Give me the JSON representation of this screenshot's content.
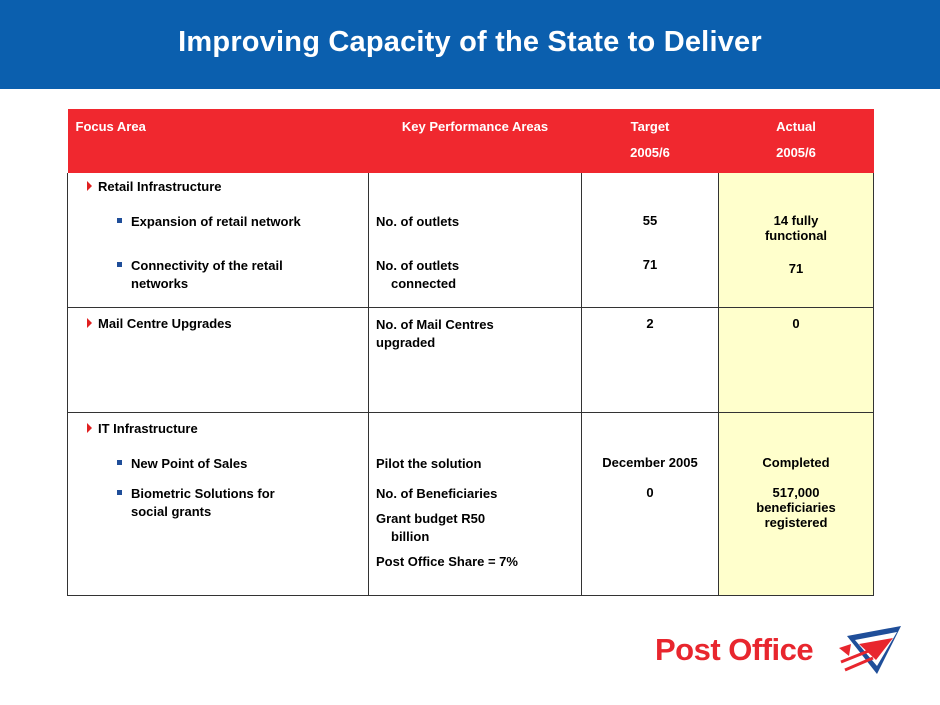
{
  "title": "Improving Capacity of the State to Deliver",
  "table": {
    "headers": {
      "focus_area": "Focus Area",
      "kpa": "Key Performance Areas",
      "target": "Target",
      "target_year": "2005/6",
      "actual": "Actual",
      "actual_year": "2005/6"
    },
    "sections": {
      "retail": {
        "title": "Retail Infrastructure",
        "rows": [
          {
            "focus": "Expansion of retail network",
            "kpa": "No. of outlets",
            "kpa_line2": "",
            "target": "55",
            "actual_line1": "14 fully",
            "actual_line2": "functional"
          },
          {
            "focus_line1": "Connectivity of the retail",
            "focus_line2": "networks",
            "kpa": "No. of outlets",
            "kpa_line2": "connected",
            "target": "71",
            "actual": "71"
          }
        ]
      },
      "mail": {
        "title": "Mail Centre Upgrades",
        "kpa_line1": "No. of Mail Centres",
        "kpa_line2": "upgraded",
        "target": "2",
        "actual": "0"
      },
      "it": {
        "title": "IT Infrastructure",
        "rows": [
          {
            "focus": "New Point of Sales",
            "kpa": "Pilot the solution",
            "target": "December 2005",
            "actual": "Completed"
          },
          {
            "focus_line1": "Biometric Solutions for",
            "focus_line2": "social grants",
            "kpa_line1": "No. of Beneficiaries",
            "kpa_line2": "Grant budget R50",
            "kpa_line3": "billion",
            "kpa_line4": "Post Office Share = 7%",
            "target": "0",
            "actual_line1": "517,000",
            "actual_line2": "beneficiaries",
            "actual_line3": "registered"
          }
        ]
      }
    }
  },
  "logo": {
    "text": "Post Office",
    "brand_red": "#E8262E",
    "brand_blue": "#1F4E99"
  },
  "colors": {
    "banner": "#0B5FAE",
    "header_red": "#F0282F",
    "actual_column": "#FFFFCC"
  }
}
